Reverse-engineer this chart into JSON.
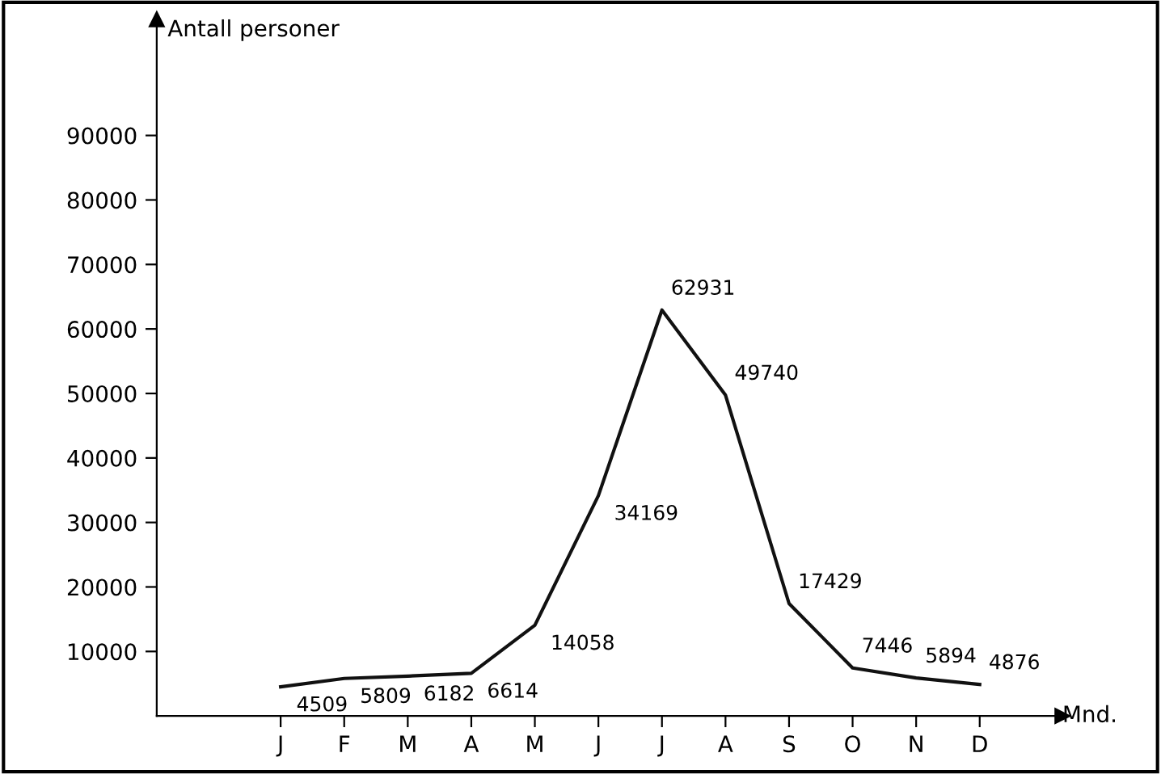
{
  "chart_data": {
    "type": "line",
    "ylabel": "Antall personer",
    "xlabel": "Mnd.",
    "categories": [
      "J",
      "F",
      "M",
      "A",
      "M",
      "J",
      "J",
      "A",
      "S",
      "O",
      "N",
      "D"
    ],
    "series": [
      {
        "color": "#111111",
        "values": [
          4509,
          5809,
          6182,
          6614,
          14058,
          34169,
          62931,
          49740,
          17429,
          7446,
          5894,
          4876
        ]
      }
    ],
    "ylim": [
      0,
      108000
    ],
    "yticks": [
      10000,
      20000,
      30000,
      40000,
      50000,
      60000,
      70000,
      80000,
      90000
    ],
    "data_labels": true,
    "grid": false,
    "legend": false,
    "marker": "none",
    "line_style": "solid"
  }
}
